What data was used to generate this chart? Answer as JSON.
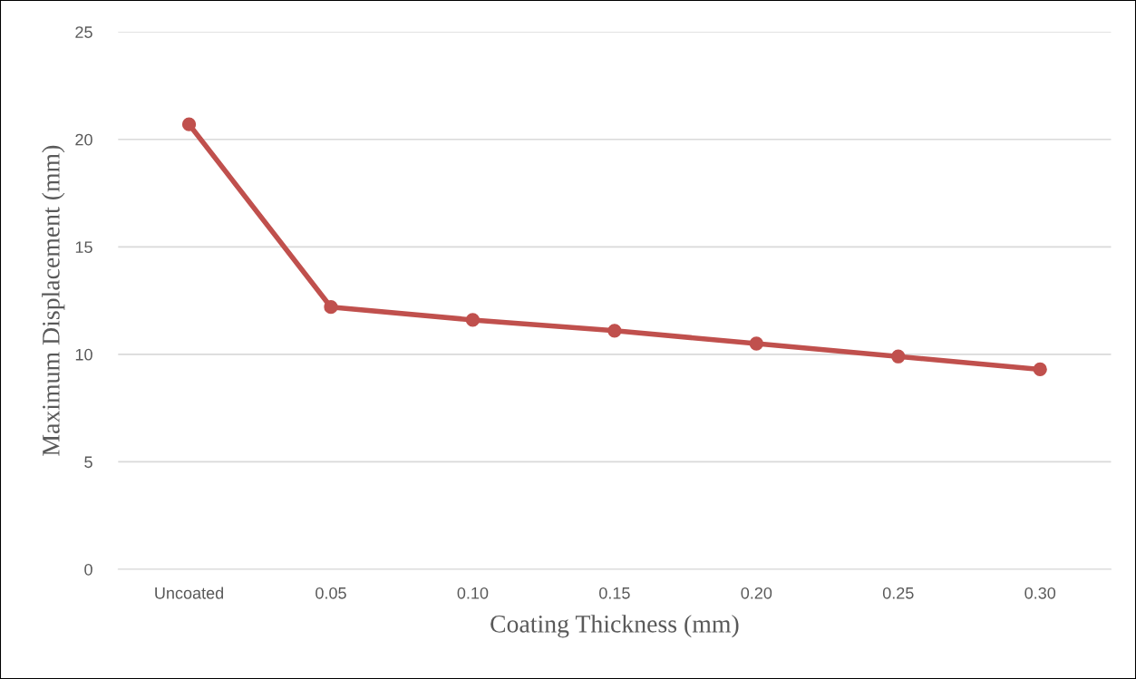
{
  "chart_data": {
    "type": "line",
    "xlabel": "Coating Thickness (mm)",
    "ylabel": "Maximum Displacement (mm)",
    "categories": [
      "Uncoated",
      "0.05",
      "0.10",
      "0.15",
      "0.20",
      "0.25",
      "0.30"
    ],
    "series": [
      {
        "color": "#c0504d",
        "values": [
          20.7,
          12.2,
          11.6,
          11.1,
          10.5,
          9.9,
          9.3
        ]
      }
    ],
    "ylim": [
      0,
      25
    ],
    "yticks": [
      0,
      5,
      10,
      15,
      20,
      25
    ],
    "grid": "y",
    "marker": "circle",
    "line_style": "solid"
  }
}
